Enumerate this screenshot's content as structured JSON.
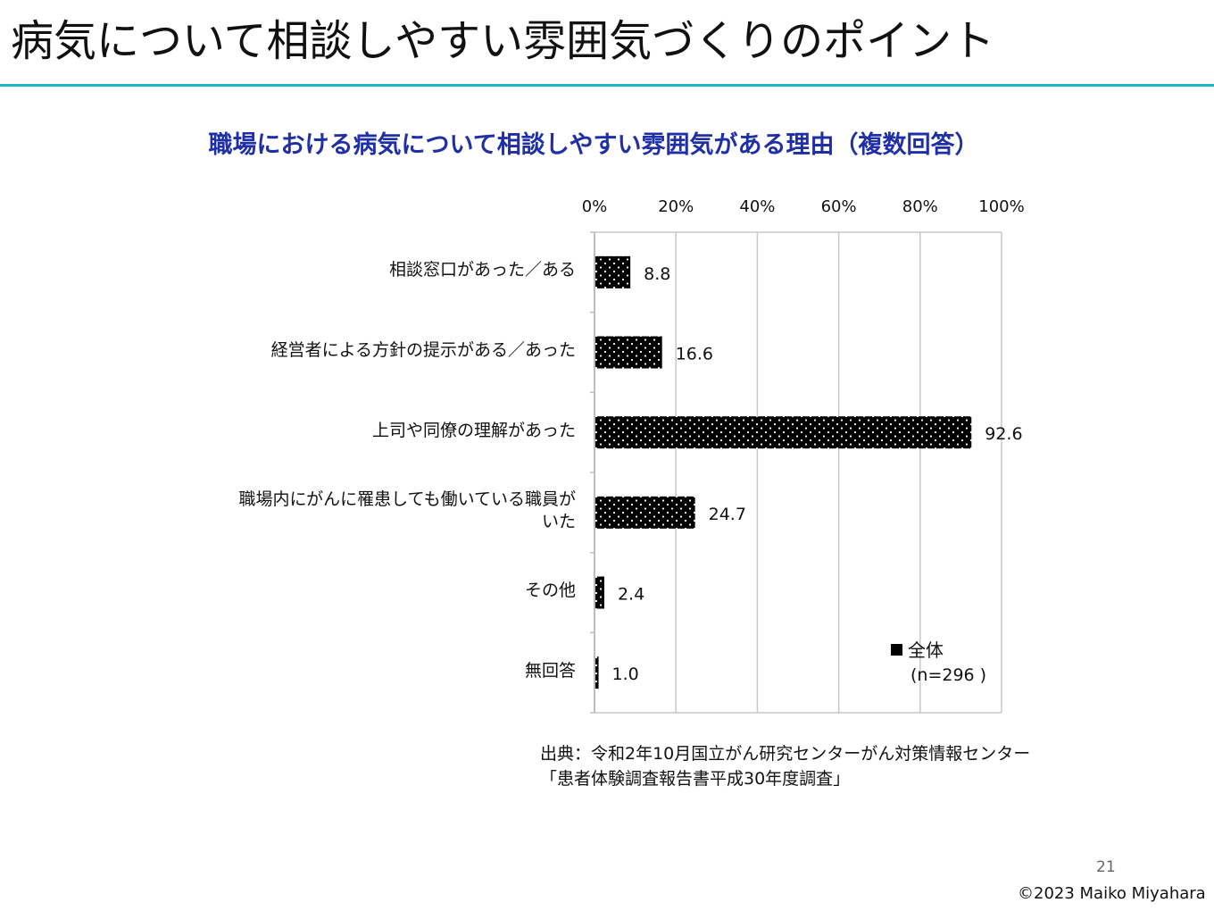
{
  "slide": {
    "title": "病気について相談しやすい雰囲気づくりのポイント",
    "page_number": "21",
    "copyright": "©2023 Maiko Miyahara",
    "source_line1": "出典：令和2年10月国立がん研究センターがん対策情報センター",
    "source_line2": "「患者体験調査報告書平成30年度調査」"
  },
  "colors": {
    "rule": "#1cb6c6",
    "chart_title": "#1f2fa8",
    "bar": "#000000",
    "bar_dots": "#ffffff",
    "grid": "#c8c8c8"
  },
  "chart_data": {
    "type": "bar",
    "orientation": "horizontal",
    "title": "職場における病気について相談しやすい雰囲気がある理由（複数回答）",
    "categories": [
      "相談窓口があった／ある",
      "経営者による方針の提示がある／あった",
      "上司や同僚の理解があった",
      "職場内にがんに罹患しても働いている職員が\nいた",
      "その他",
      "無回答"
    ],
    "series": [
      {
        "name": "全体",
        "values": [
          8.8,
          16.6,
          92.6,
          24.7,
          2.4,
          1.0
        ]
      }
    ],
    "value_labels": [
      "8.8",
      "16.6",
      "92.6",
      "24.7",
      "2.4",
      "1.0"
    ],
    "xlim": [
      0,
      100
    ],
    "x_ticks": [
      0,
      20,
      40,
      60,
      80,
      100
    ],
    "x_tick_labels": [
      "0%",
      "20%",
      "40%",
      "60%",
      "80%",
      "100%"
    ],
    "x_axis_position": "top",
    "grid": true,
    "legend": {
      "position": "bottom-right",
      "label": "全体",
      "note": "(n=296 )"
    }
  }
}
